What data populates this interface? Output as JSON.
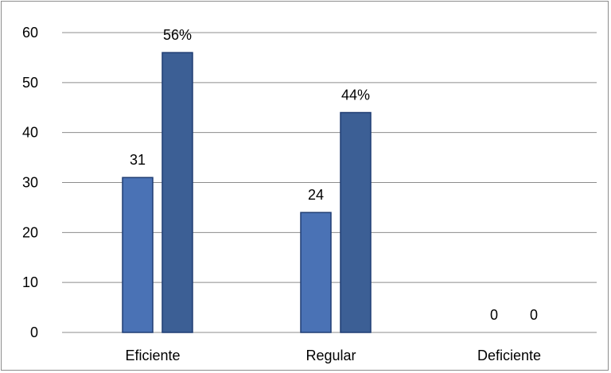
{
  "chart_data": {
    "type": "bar",
    "categories": [
      "Eficiente",
      "Regular",
      "Deficiente"
    ],
    "series": [
      {
        "values": [
          31,
          24,
          0
        ],
        "data_labels": [
          "31",
          "24",
          "0"
        ],
        "color": "#4a72b5"
      },
      {
        "values": [
          56,
          44,
          0
        ],
        "data_labels": [
          "56%",
          "44%",
          "0"
        ],
        "color": "#3c5f95"
      }
    ],
    "ylim": [
      0,
      60
    ],
    "y_ticks": [
      0,
      10,
      20,
      30,
      40,
      50,
      60
    ],
    "y_tick_labels": [
      "0",
      "10",
      "20",
      "30",
      "40",
      "50",
      "60"
    ],
    "grid": true,
    "legend": "none",
    "title": "",
    "xlabel": "",
    "ylabel": ""
  }
}
